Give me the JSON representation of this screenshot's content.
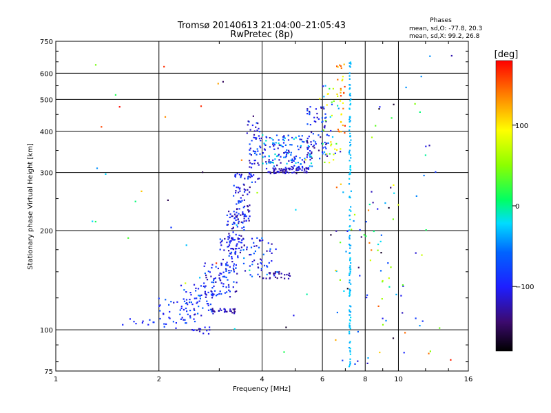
{
  "chart_data": {
    "type": "scatter",
    "title": "Tromsø 20140613 21:04:00–21:05:43",
    "subtitle": "RwPretec (8p)",
    "xlabel": "Frequency [MHz]",
    "ylabel": "Stationary phase Virtual Height [km]",
    "x_scale": "log",
    "y_scale": "log",
    "xlim": [
      1,
      16
    ],
    "ylim": [
      75,
      750
    ],
    "x_ticks": [
      1,
      2,
      4,
      6,
      8,
      10,
      16
    ],
    "x_tick_labels": [
      "1",
      "2",
      "4",
      "6",
      "8",
      "10",
      "16"
    ],
    "y_ticks": [
      75,
      100,
      200,
      300,
      400,
      500,
      600,
      750
    ],
    "y_tick_labels": [
      "75",
      "100",
      "200",
      "300",
      "400",
      "500",
      "600",
      "750"
    ],
    "grid": true,
    "stats": {
      "heading": "Phases",
      "line_o": "mean, sd,O: -77.8, 20.3",
      "line_x": "mean, sd,X:  99.2, 26.8"
    },
    "colorbar": {
      "label": "[deg]",
      "range": [
        -180,
        180
      ],
      "ticks": [
        100,
        0,
        -100
      ],
      "tick_labels": [
        "100",
        "0",
        "−100"
      ]
    },
    "segments": [
      {
        "x0": 1.55,
        "x1": 1.95,
        "y0": 103,
        "y1": 108,
        "n": 10,
        "phase": [
          -110,
          -80
        ]
      },
      {
        "x0": 1.95,
        "x1": 2.6,
        "y0": 100,
        "y1": 125,
        "n": 45,
        "phase": [
          -120,
          -60
        ]
      },
      {
        "x0": 2.3,
        "x1": 3.0,
        "y0": 110,
        "y1": 140,
        "n": 50,
        "phase": [
          -120,
          -50
        ]
      },
      {
        "x0": 2.7,
        "x1": 3.25,
        "y0": 125,
        "y1": 160,
        "n": 55,
        "phase": [
          -130,
          -60
        ]
      },
      {
        "x0": 3.0,
        "x1": 3.4,
        "y0": 130,
        "y1": 190,
        "n": 70,
        "phase": [
          -140,
          -60
        ]
      },
      {
        "x0": 3.15,
        "x1": 3.55,
        "y0": 170,
        "y1": 230,
        "n": 70,
        "phase": [
          -140,
          -70
        ]
      },
      {
        "x0": 3.3,
        "x1": 3.7,
        "y0": 210,
        "y1": 300,
        "n": 80,
        "phase": [
          -140,
          -70
        ]
      },
      {
        "x0": 3.6,
        "x1": 3.95,
        "y0": 280,
        "y1": 430,
        "n": 55,
        "phase": [
          -130,
          -60
        ]
      },
      {
        "x0": 2.85,
        "x1": 3.35,
        "y0": 112,
        "y1": 116,
        "n": 28,
        "phase": [
          -140,
          -110
        ]
      },
      {
        "x0": 2.5,
        "x1": 2.9,
        "y0": 97,
        "y1": 102,
        "n": 12,
        "phase": [
          -130,
          -90
        ]
      },
      {
        "x0": 3.5,
        "x1": 4.5,
        "y0": 145,
        "y1": 190,
        "n": 55,
        "phase": [
          -130,
          -40
        ]
      },
      {
        "x0": 3.9,
        "x1": 4.9,
        "y0": 143,
        "y1": 150,
        "n": 25,
        "phase": [
          -140,
          -120
        ]
      },
      {
        "x0": 3.95,
        "x1": 5.6,
        "y0": 310,
        "y1": 390,
        "n": 150,
        "phase": [
          -130,
          -10
        ]
      },
      {
        "x0": 4.1,
        "x1": 5.5,
        "y0": 298,
        "y1": 310,
        "n": 70,
        "phase": [
          -140,
          -100
        ]
      },
      {
        "x0": 5.4,
        "x1": 6.2,
        "y0": 330,
        "y1": 480,
        "n": 60,
        "phase": [
          -140,
          -60
        ]
      },
      {
        "x0": 6.0,
        "x1": 6.8,
        "y0": 320,
        "y1": 560,
        "n": 45,
        "phase": [
          -140,
          110
        ]
      },
      {
        "x0": 6.6,
        "x1": 7.0,
        "y0": 390,
        "y1": 640,
        "n": 30,
        "phase": [
          80,
          170
        ]
      },
      {
        "x0": 7.18,
        "x1": 7.26,
        "y0": 75,
        "y1": 660,
        "n": 130,
        "phase": [
          -40,
          -20
        ]
      },
      {
        "x0": 6.5,
        "x1": 8.5,
        "y0": 78,
        "y1": 300,
        "n": 40,
        "phase": [
          -150,
          160
        ]
      },
      {
        "x0": 8.5,
        "x1": 12.5,
        "y0": 78,
        "y1": 640,
        "n": 45,
        "phase": [
          -170,
          150
        ]
      },
      {
        "x0": 1.2,
        "x1": 15.5,
        "y0": 76,
        "y1": 700,
        "n": 60,
        "phase": [
          -180,
          180
        ]
      }
    ]
  }
}
